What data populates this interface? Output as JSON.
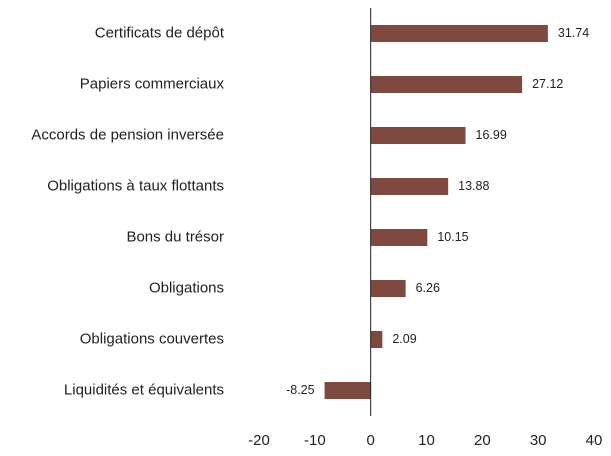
{
  "chart_data": {
    "type": "bar",
    "orientation": "horizontal",
    "categories": [
      "Certificats de dépôt",
      "Papiers commerciaux",
      "Accords de pension inversée",
      "Obligations à taux flottants",
      "Bons du trésor",
      "Obligations",
      "Obligations couvertes",
      "Liquidités et équivalents"
    ],
    "values": [
      31.74,
      27.12,
      16.99,
      13.88,
      10.15,
      6.26,
      2.09,
      -8.25
    ],
    "color": "#7e4a3f",
    "xlim": [
      -20,
      40
    ],
    "xticks": [
      -20,
      -10,
      0,
      10,
      20,
      30,
      40
    ],
    "grid": false
  }
}
